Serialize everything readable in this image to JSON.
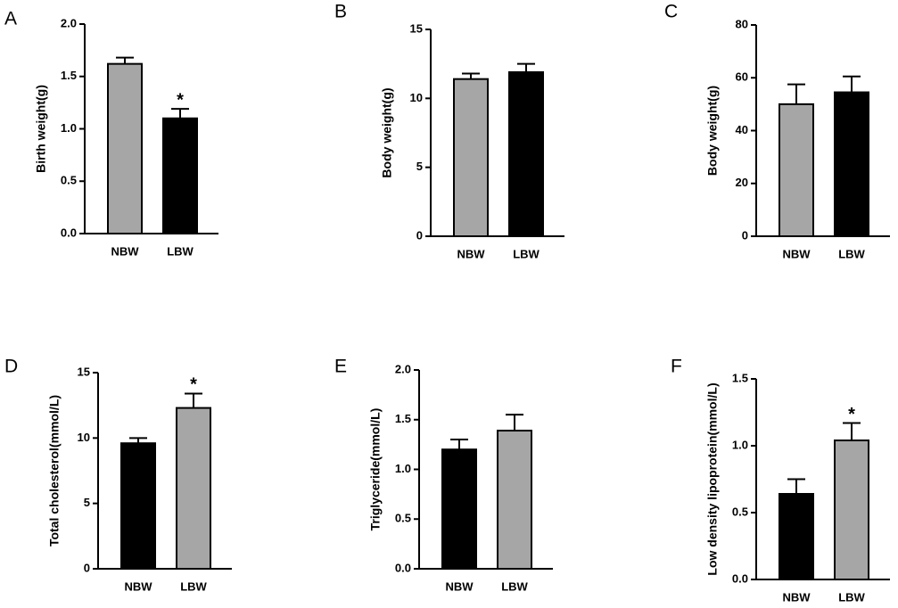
{
  "chart_data": [
    {
      "type": "bar",
      "panel": "A",
      "ylabel": "Birth weight(g)",
      "categories": [
        "NBW",
        "LBW"
      ],
      "values": [
        1.62,
        1.1
      ],
      "errors": [
        0.06,
        0.09
      ],
      "colors": [
        "#a6a6a6",
        "#000000"
      ],
      "ylim": [
        0,
        2
      ],
      "yticks": [
        {
          "value": 0,
          "label": "0.0"
        },
        0.5,
        {
          "value": 1,
          "label": "1.0"
        },
        1.5,
        {
          "value": 2,
          "label": "2.0"
        }
      ],
      "annotations": [
        {
          "text": "*",
          "category": "LBW"
        }
      ]
    },
    {
      "type": "bar",
      "panel": "B",
      "ylabel": "Body weight(g)",
      "categories": [
        "NBW",
        "LBW"
      ],
      "values": [
        11.4,
        11.9
      ],
      "errors": [
        0.4,
        0.6
      ],
      "colors": [
        "#a6a6a6",
        "#000000"
      ],
      "ylim": [
        0,
        15
      ],
      "yticks": [
        0,
        5,
        10,
        15
      ]
    },
    {
      "type": "bar",
      "panel": "C",
      "ylabel": "Body weight(g)",
      "categories": [
        "NBW",
        "LBW"
      ],
      "values": [
        50,
        54.5
      ],
      "errors": [
        7.5,
        6
      ],
      "colors": [
        "#a6a6a6",
        "#000000"
      ],
      "ylim": [
        0,
        80
      ],
      "yticks": [
        0,
        20,
        40,
        60,
        80
      ]
    },
    {
      "type": "bar",
      "panel": "D",
      "ylabel": "Total cholesterol(mmol/L)",
      "categories": [
        "NBW",
        "LBW"
      ],
      "values": [
        9.6,
        12.3
      ],
      "errors": [
        0.4,
        1.1
      ],
      "colors": [
        "#000000",
        "#a6a6a6"
      ],
      "ylim": [
        0,
        15
      ],
      "yticks": [
        0,
        5,
        10,
        15
      ],
      "annotations": [
        {
          "text": "*",
          "category": "LBW"
        }
      ]
    },
    {
      "type": "bar",
      "panel": "E",
      "ylabel": "Triglyceride(mmol/L)",
      "categories": [
        "NBW",
        "LBW"
      ],
      "values": [
        1.2,
        1.39
      ],
      "errors": [
        0.1,
        0.16
      ],
      "colors": [
        "#000000",
        "#a6a6a6"
      ],
      "ylim": [
        0,
        2
      ],
      "yticks": [
        {
          "value": 0,
          "label": "0.0"
        },
        0.5,
        {
          "value": 1,
          "label": "1.0"
        },
        1.5,
        {
          "value": 2,
          "label": "2.0"
        }
      ]
    },
    {
      "type": "bar",
      "panel": "F",
      "ylabel": "Low density lipoprotein(mmol/L)",
      "categories": [
        "NBW",
        "LBW"
      ],
      "values": [
        0.64,
        1.04
      ],
      "errors": [
        0.11,
        0.13
      ],
      "colors": [
        "#000000",
        "#a6a6a6"
      ],
      "ylim": [
        0,
        1.5
      ],
      "yticks": [
        {
          "value": 0,
          "label": "0.0"
        },
        0.5,
        {
          "value": 1,
          "label": "1.0"
        },
        1.5
      ],
      "annotations": [
        {
          "text": "*",
          "category": "LBW"
        }
      ]
    }
  ]
}
